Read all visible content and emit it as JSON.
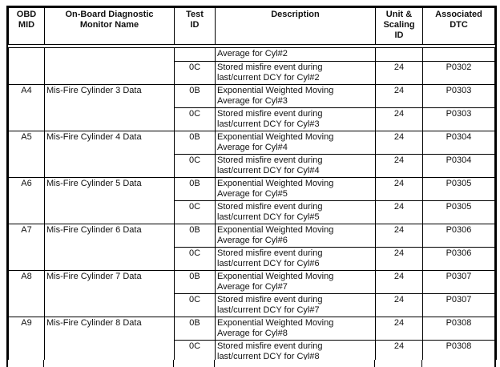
{
  "colors": {
    "background": "#ffffff",
    "text": "#111111",
    "border": "#000000"
  },
  "table": {
    "headers": [
      "OBD\nMID",
      "On-Board Diagnostic\nMonitor Name",
      "Test\nID",
      "Description",
      "Unit &\nScaling\nID",
      "Associated\nDTC"
    ],
    "groups": [
      {
        "mid": "",
        "monitor_name": "",
        "tests": [
          {
            "test_id": "",
            "description": "Average for Cyl#2",
            "unit_scaling_id": "",
            "dtc": ""
          },
          {
            "test_id": "0C",
            "description": "Stored misfire event during\nlast/current DCY for Cyl#2",
            "unit_scaling_id": "24",
            "dtc": "P0302"
          }
        ]
      },
      {
        "mid": "A4",
        "monitor_name": "Mis-Fire Cylinder 3 Data",
        "tests": [
          {
            "test_id": "0B",
            "description": "Exponential Weighted Moving\nAverage for Cyl#3",
            "unit_scaling_id": "24",
            "dtc": "P0303"
          },
          {
            "test_id": "0C",
            "description": "Stored misfire event during\nlast/current DCY for Cyl#3",
            "unit_scaling_id": "24",
            "dtc": "P0303"
          }
        ]
      },
      {
        "mid": "A5",
        "monitor_name": "Mis-Fire Cylinder 4 Data",
        "tests": [
          {
            "test_id": "0B",
            "description": "Exponential Weighted Moving\nAverage for Cyl#4",
            "unit_scaling_id": "24",
            "dtc": "P0304"
          },
          {
            "test_id": "0C",
            "description": "Stored misfire event during\nlast/current DCY for Cyl#4",
            "unit_scaling_id": "24",
            "dtc": "P0304"
          }
        ]
      },
      {
        "mid": "A6",
        "monitor_name": "Mis-Fire Cylinder 5 Data",
        "tests": [
          {
            "test_id": "0B",
            "description": "Exponential Weighted Moving\nAverage for Cyl#5",
            "unit_scaling_id": "24",
            "dtc": "P0305"
          },
          {
            "test_id": "0C",
            "description": "Stored misfire event during\nlast/current DCY for Cyl#5",
            "unit_scaling_id": "24",
            "dtc": "P0305"
          }
        ]
      },
      {
        "mid": "A7",
        "monitor_name": "Mis-Fire Cylinder 6 Data",
        "tests": [
          {
            "test_id": "0B",
            "description": "Exponential Weighted Moving\nAverage for Cyl#6",
            "unit_scaling_id": "24",
            "dtc": "P0306"
          },
          {
            "test_id": "0C",
            "description": "Stored misfire event during\nlast/current DCY for Cyl#6",
            "unit_scaling_id": "24",
            "dtc": "P0306"
          }
        ]
      },
      {
        "mid": "A8",
        "monitor_name": "Mis-Fire Cylinder 7 Data",
        "tests": [
          {
            "test_id": "0B",
            "description": "Exponential Weighted Moving\nAverage for Cyl#7",
            "unit_scaling_id": "24",
            "dtc": "P0307"
          },
          {
            "test_id": "0C",
            "description": "Stored misfire event during\nlast/current DCY for Cyl#7",
            "unit_scaling_id": "24",
            "dtc": "P0307"
          }
        ]
      },
      {
        "mid": "A9",
        "monitor_name": "Mis-Fire Cylinder 8 Data",
        "tests": [
          {
            "test_id": "0B",
            "description": "Exponential Weighted Moving\nAverage for Cyl#8",
            "unit_scaling_id": "24",
            "dtc": "P0308"
          },
          {
            "test_id": "0C",
            "description": "Stored misfire event during\nlast/current DCY for Cyl#8",
            "unit_scaling_id": "24",
            "dtc": "P0308"
          }
        ]
      }
    ]
  }
}
